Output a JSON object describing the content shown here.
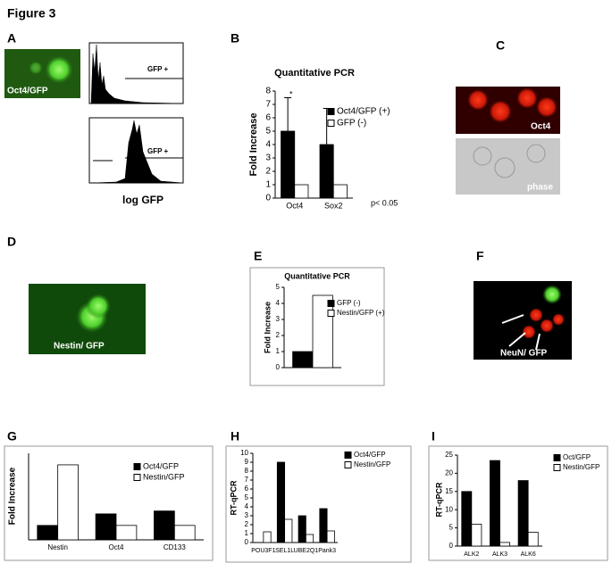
{
  "figure_title": "Figure 3",
  "panel_labels": [
    "A",
    "B",
    "C",
    "D",
    "E",
    "F",
    "G",
    "H",
    "I"
  ],
  "image_labels": [
    "Oct4/GFP",
    "Oct4",
    "phase",
    "Nestin/ GFP",
    "NeuN/ GFP"
  ],
  "flow_labels": [
    "GFP +",
    "GFP +",
    "log GFP"
  ],
  "chart_data": [
    {
      "type": "bar",
      "title": "Quantitative PCR",
      "ylabel": "Fold Increase",
      "categories": [
        "Oct4",
        "Sox2"
      ],
      "series": [
        {
          "name": "Oct4/GFP (+)",
          "color": "#000000",
          "values": [
            5,
            4
          ],
          "errors": [
            2.5,
            2.7
          ]
        },
        {
          "name": "GFP (-)",
          "color": "#ffffff",
          "values": [
            1,
            1
          ]
        }
      ],
      "ylim": [
        0,
        8
      ],
      "yticks": [
        0,
        1,
        2,
        3,
        4,
        5,
        6,
        7,
        8
      ],
      "annotations": [
        "*",
        "p< 0.05"
      ]
    },
    {
      "type": "bar",
      "title": "Quantitative PCR",
      "ylabel": "Fold Increase",
      "categories": [
        null
      ],
      "series": [
        {
          "name": "GFP (-)",
          "color": "#000000",
          "values": [
            1
          ]
        },
        {
          "name": "Nestin/GFP (+)",
          "color": "#ffffff",
          "values": [
            4.5
          ]
        }
      ],
      "ylim": [
        0,
        5
      ],
      "yticks": [
        0,
        1,
        2,
        3,
        4,
        5
      ]
    },
    {
      "type": "bar",
      "ylabel": "Fold Increase",
      "categories": [
        "Nestin",
        "Oct4",
        "CD133"
      ],
      "series": [
        {
          "name": "Oct4/GFP",
          "color": "#000000",
          "values": [
            1,
            1.8,
            2
          ]
        },
        {
          "name": "Nestin/GFP",
          "color": "#ffffff",
          "values": [
            5.2,
            1,
            1
          ]
        }
      ],
      "ylim": [
        0,
        6
      ]
    },
    {
      "type": "bar",
      "ylabel": "RT-qPCR",
      "categories": [
        "POU3F1",
        "SEL1L",
        "UBE2Q1",
        "Pank3"
      ],
      "series": [
        {
          "name": "Oct4/GFP",
          "color": "#000000",
          "values": [
            0,
            9,
            3,
            3.8
          ]
        },
        {
          "name": "Nestin/GFP",
          "color": "#ffffff",
          "values": [
            1.2,
            2.6,
            0.9,
            1.3
          ]
        }
      ],
      "ylim": [
        0,
        10
      ],
      "yticks": [
        0,
        1,
        2,
        3,
        4,
        5,
        6,
        7,
        8,
        9,
        10
      ]
    },
    {
      "type": "bar",
      "ylabel": "RT-qPCR",
      "categories": [
        "ALK2",
        "ALK3",
        "ALK6"
      ],
      "series": [
        {
          "name": "Oct/GFP",
          "color": "#000000",
          "values": [
            15,
            23.5,
            18
          ]
        },
        {
          "name": "Nestin/GFP",
          "color": "#ffffff",
          "values": [
            6,
            1,
            3.8
          ]
        }
      ],
      "ylim": [
        0,
        25
      ],
      "yticks": [
        0,
        5,
        10,
        15,
        20,
        25
      ]
    }
  ]
}
